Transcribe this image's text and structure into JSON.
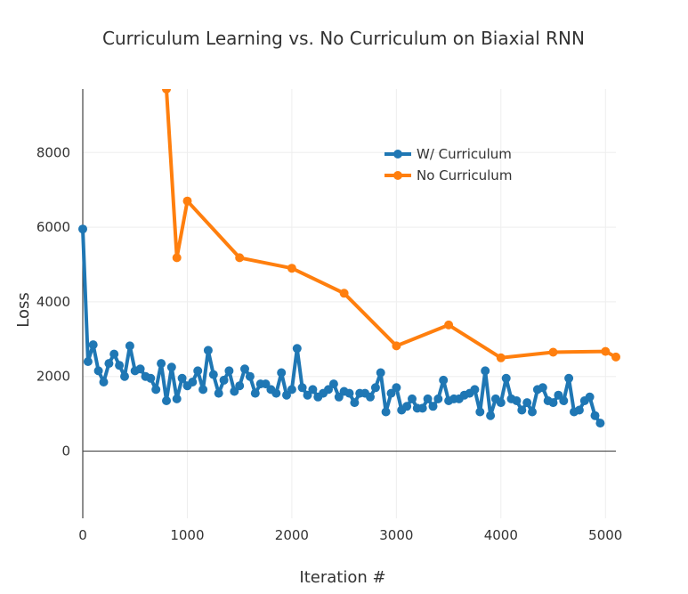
{
  "chart_data": {
    "type": "line",
    "title": "Curriculum  Learning  vs. No  Curriculum on Biaxial RNN",
    "xlabel": "Iteration #",
    "ylabel": "Loss",
    "xlim": [
      0,
      5100
    ],
    "ylim": [
      -1800,
      9700
    ],
    "xticks": [
      0,
      1000,
      2000,
      3000,
      4000,
      5000
    ],
    "yticks": [
      0,
      2000,
      4000,
      6000,
      8000
    ],
    "grid": true,
    "legend_position": "top-right (inside plot)",
    "series": [
      {
        "name": "W/ Curriculum",
        "color": "#1f77b4",
        "x": [
          0,
          50,
          100,
          150,
          200,
          250,
          300,
          350,
          400,
          450,
          500,
          550,
          600,
          650,
          700,
          750,
          800,
          850,
          900,
          950,
          1000,
          1050,
          1100,
          1150,
          1200,
          1250,
          1300,
          1350,
          1400,
          1450,
          1500,
          1550,
          1600,
          1650,
          1700,
          1750,
          1800,
          1850,
          1900,
          1950,
          2000,
          2050,
          2100,
          2150,
          2200,
          2250,
          2300,
          2350,
          2400,
          2450,
          2500,
          2550,
          2600,
          2650,
          2700,
          2750,
          2800,
          2850,
          2900,
          2950,
          3000,
          3050,
          3100,
          3150,
          3200,
          3250,
          3300,
          3350,
          3400,
          3450,
          3500,
          3550,
          3600,
          3650,
          3700,
          3750,
          3800,
          3850,
          3900,
          3950,
          4000,
          4050,
          4100,
          4150,
          4200,
          4250,
          4300,
          4350,
          4400,
          4450,
          4500,
          4550,
          4600,
          4650,
          4700,
          4750,
          4800,
          4850,
          4900,
          4950
        ],
        "y": [
          5950,
          2400,
          2850,
          2150,
          1850,
          2350,
          2600,
          2300,
          2000,
          2820,
          2150,
          2200,
          2000,
          1950,
          1650,
          2350,
          1350,
          2250,
          1400,
          1950,
          1750,
          1850,
          2150,
          1650,
          2700,
          2050,
          1550,
          1900,
          2150,
          1600,
          1750,
          2200,
          2000,
          1550,
          1800,
          1800,
          1650,
          1550,
          2100,
          1500,
          1650,
          2750,
          1700,
          1500,
          1650,
          1450,
          1550,
          1650,
          1800,
          1450,
          1600,
          1550,
          1300,
          1550,
          1550,
          1450,
          1700,
          2100,
          1050,
          1550,
          1700,
          1100,
          1200,
          1400,
          1150,
          1150,
          1400,
          1200,
          1400,
          1900,
          1350,
          1400,
          1400,
          1500,
          1550,
          1650,
          1050,
          2150,
          950,
          1400,
          1300,
          1950,
          1400,
          1350,
          1100,
          1300,
          1050,
          1650,
          1700,
          1350,
          1300,
          1500,
          1350,
          1950,
          1050,
          1100,
          1350,
          1450,
          950,
          750
        ]
      },
      {
        "name": "No Curriculum",
        "color": "#ff7f0e",
        "x": [
          800,
          900,
          1000,
          1500,
          2000,
          2500,
          3000,
          3500,
          4000,
          4500,
          5000,
          5100
        ],
        "y": [
          9700,
          5180,
          6700,
          5180,
          4900,
          4230,
          2820,
          3380,
          2500,
          2650,
          2670,
          2520
        ]
      }
    ]
  }
}
